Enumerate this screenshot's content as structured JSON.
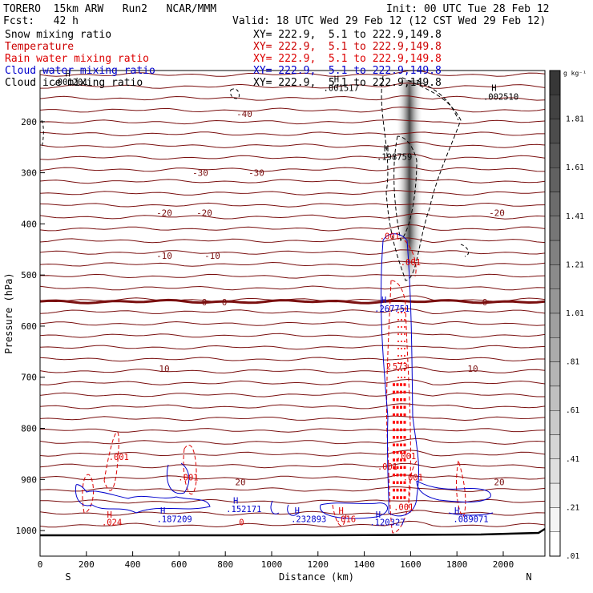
{
  "header": {
    "model": "TORERO  15km ARW   Run2   NCAR/MMM",
    "init": "Init: 00 UTC Tue 28 Feb 12",
    "fcst": "Fcst:   42 h",
    "valid": "Valid: 18 UTC Wed 29 Feb 12 (12 CST Wed 29 Feb 12)"
  },
  "fields": [
    {
      "name": "Snow mixing ratio",
      "xy": "XY= 222.9,  5.1 to 222.9,149.8",
      "color": "#000000"
    },
    {
      "name": "Temperature",
      "xy": "XY= 222.9,  5.1 to 222.9,149.8",
      "color": "#cc0000"
    },
    {
      "name": "Rain water mixing ratio",
      "xy": "XY= 222.9,  5.1 to 222.9,149.8",
      "color": "#dd0000"
    },
    {
      "name": "Cloud water mixing ratio",
      "xy": "XY= 222.9,  5.1 to 222.9,149.8",
      "color": "#0000cc"
    },
    {
      "name": "Cloud ice mixing ratio",
      "xy": "XY= 222.9,  5.1 to 222.9,149.8",
      "color": "#000000"
    }
  ],
  "chart_data": {
    "type": "cross-section contour",
    "xlabel": "Distance (km)",
    "ylabel": "Pressure (hPa)",
    "xlim": [
      0,
      2180
    ],
    "ylim": [
      1050,
      100
    ],
    "x_ticks": [
      0,
      200,
      400,
      600,
      800,
      1000,
      1200,
      1400,
      1600,
      1800,
      2000
    ],
    "y_ticks": [
      200,
      300,
      400,
      500,
      600,
      700,
      800,
      900,
      1000
    ],
    "left_end": "S",
    "right_end": "N",
    "colorbar": {
      "unit": "g kg⁻¹",
      "labels": [
        "1.81",
        "1.61",
        "1.41",
        "1.21",
        "1.01",
        ".81",
        ".61",
        ".41",
        ".21",
        ".01"
      ]
    },
    "temperature_contours": [
      {
        "label": "-40",
        "p": 185
      },
      {
        "label": "-30",
        "p": 300
      },
      {
        "label": "-20",
        "p": 378
      },
      {
        "label": "-10",
        "p": 462
      },
      {
        "label": "0",
        "p": 553
      },
      {
        "label": "10",
        "p": 683
      },
      {
        "label": "20",
        "p": 905
      }
    ],
    "annotations": [
      {
        "text": "H",
        "x": 120,
        "p": 112
      },
      {
        "text": ".001201",
        "x": 130,
        "p": 128
      },
      {
        "text": "H",
        "x": 1280,
        "p": 123
      },
      {
        "text": ".001517",
        "x": 1300,
        "p": 140
      },
      {
        "text": "H",
        "x": 1960,
        "p": 140
      },
      {
        "text": ".002510",
        "x": 1990,
        "p": 157
      },
      {
        "text": "H",
        "x": 1495,
        "p": 258
      },
      {
        "text": ".198759",
        "x": 1530,
        "p": 275
      },
      {
        "text": "H",
        "x": 1485,
        "p": 555
      },
      {
        "text": ".267751",
        "x": 1520,
        "p": 572
      },
      {
        "text": ".001",
        "x": 1510,
        "p": 430
      },
      {
        "text": ".001",
        "x": 1600,
        "p": 481
      },
      {
        "text": "2",
        "x": 1505,
        "p": 685
      },
      {
        "text": "573",
        "x": 1555,
        "p": 685
      },
      {
        "text": ".001",
        "x": 340,
        "p": 862
      },
      {
        "text": ".001",
        "x": 640,
        "p": 902
      },
      {
        "text": ".001",
        "x": 1500,
        "p": 881
      },
      {
        "text": ".001",
        "x": 1580,
        "p": 860
      },
      {
        "text": ".001",
        "x": 1610,
        "p": 902
      },
      {
        "text": "H",
        "x": 300,
        "p": 975
      },
      {
        "text": ".024",
        "x": 310,
        "p": 990
      },
      {
        "text": "H",
        "x": 530,
        "p": 967
      },
      {
        "text": ".187209",
        "x": 580,
        "p": 983
      },
      {
        "text": "H",
        "x": 845,
        "p": 947
      },
      {
        "text": ".152171",
        "x": 880,
        "p": 964
      },
      {
        "text": "0",
        "x": 870,
        "p": 990
      },
      {
        "text": "H",
        "x": 1110,
        "p": 967
      },
      {
        "text": ".232893",
        "x": 1160,
        "p": 983
      },
      {
        "text": "H",
        "x": 1300,
        "p": 967
      },
      {
        "text": ".016",
        "x": 1320,
        "p": 983
      },
      {
        "text": "H",
        "x": 1460,
        "p": 975
      },
      {
        "text": ".120327",
        "x": 1500,
        "p": 990
      },
      {
        "text": "H",
        "x": 1800,
        "p": 967
      },
      {
        "text": ".089071",
        "x": 1860,
        "p": 983
      },
      {
        "text": ".001",
        "x": 1570,
        "p": 960
      }
    ]
  }
}
